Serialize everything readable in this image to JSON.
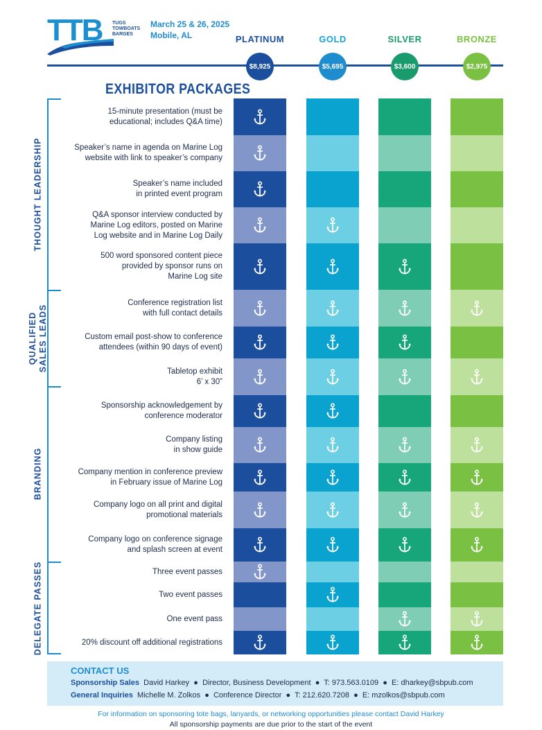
{
  "logo": {
    "text": "TTB",
    "sub": [
      "TUGS",
      "TOWBOATS",
      "BARGES"
    ]
  },
  "event": {
    "dates": "March 25 & 26, 2025",
    "location": "Mobile, AL"
  },
  "section_title": "EXHIBITOR PACKAGES",
  "tiers": [
    {
      "name": "PLATINUM",
      "price": "$8,925",
      "color": "#1b4e9c",
      "dark": "#1b4e9c",
      "light": "#8396c9",
      "text": "#1b4e9c"
    },
    {
      "name": "GOLD",
      "price": "$5,695",
      "color": "#1e8ccf",
      "dark": "#0aa3cf",
      "light": "#6ccfe3",
      "text": "#1aa3d6"
    },
    {
      "name": "SILVER",
      "price": "$3,600",
      "color": "#1a9b6e",
      "dark": "#17a679",
      "light": "#7fcdb5",
      "text": "#1a9b6e"
    },
    {
      "name": "BRONZE",
      "price": "$2,975",
      "color": "#7ac143",
      "dark": "#7ac143",
      "light": "#bde09c",
      "text": "#7ac143"
    }
  ],
  "groups": [
    {
      "label": [
        "THOUGHT LEADERSHIP"
      ]
    },
    {
      "label": [
        "QUALIFIED",
        "SALES LEADS"
      ]
    },
    {
      "label": [
        "BRANDING"
      ]
    },
    {
      "label": [
        "DELEGATE PASSES"
      ]
    }
  ],
  "features": [
    {
      "text": "15-minute presentation (must be educational; includes Q&A time)",
      "lines": [
        "15-minute presentation (must be",
        "educational; includes Q&A time)"
      ],
      "included": [
        true,
        false,
        false,
        false
      ]
    },
    {
      "text": "Speaker's name in agenda on Marine Log website with link to speaker's company",
      "lines": [
        "Speaker’s name in agenda on Marine Log",
        "website with link to speaker’s company"
      ],
      "included": [
        true,
        false,
        false,
        false
      ]
    },
    {
      "text": "Speaker's name included in printed event program",
      "lines": [
        "Speaker’s name included",
        "in printed event program"
      ],
      "included": [
        true,
        false,
        false,
        false
      ]
    },
    {
      "text": "Q&A sponsor interview",
      "lines": [
        "Q&A sponsor interview conducted by",
        "Marine Log editors, posted on Marine",
        "Log website and in Marine Log Daily"
      ],
      "included": [
        true,
        true,
        false,
        false
      ]
    },
    {
      "text": "500 word sponsored content piece",
      "lines": [
        "500 word sponsored content piece",
        "provided by sponsor runs on",
        "Marine Log site"
      ],
      "included": [
        true,
        true,
        true,
        false
      ]
    },
    {
      "text": "Conference registration list",
      "lines": [
        "Conference registration list",
        "with full contact details"
      ],
      "included": [
        true,
        true,
        true,
        true
      ]
    },
    {
      "text": "Custom email post-show",
      "lines": [
        "Custom email post-show to conference",
        "attendees (within 90 days of event)"
      ],
      "included": [
        true,
        true,
        true,
        false
      ]
    },
    {
      "text": "Tabletop exhibit",
      "lines": [
        "Tabletop exhibit",
        "6’ x 30”"
      ],
      "included": [
        true,
        true,
        true,
        true
      ]
    },
    {
      "text": "Sponsorship acknowledgement",
      "lines": [
        "Sponsorship acknowledgement by",
        "conference moderator"
      ],
      "included": [
        true,
        true,
        false,
        false
      ]
    },
    {
      "text": "Company listing",
      "lines": [
        "Company listing",
        "in show guide"
      ],
      "included": [
        true,
        true,
        true,
        true
      ]
    },
    {
      "text": "Company mention",
      "lines": [
        "Company mention in conference preview",
        "in February issue of Marine Log"
      ],
      "included": [
        true,
        true,
        true,
        true
      ]
    },
    {
      "text": "Company logo print",
      "lines": [
        "Company logo on all print and digital",
        "promotional materials"
      ],
      "included": [
        true,
        true,
        true,
        true
      ]
    },
    {
      "text": "Company logo signage",
      "lines": [
        "Company logo on conference signage",
        "and splash screen at event"
      ],
      "included": [
        true,
        true,
        true,
        true
      ]
    },
    {
      "text": "Three event passes",
      "lines": [
        "Three event passes"
      ],
      "included": [
        true,
        false,
        false,
        false
      ]
    },
    {
      "text": "Two event passes",
      "lines": [
        "Two event passes"
      ],
      "included": [
        false,
        true,
        false,
        false
      ]
    },
    {
      "text": "One event pass",
      "lines": [
        "One event pass"
      ],
      "included": [
        false,
        false,
        true,
        true
      ]
    },
    {
      "text": "20% discount",
      "lines": [
        "20% discount off additional registrations"
      ],
      "included": [
        true,
        true,
        true,
        true
      ]
    }
  ],
  "contact": {
    "title": "CONTACT US",
    "rows": [
      {
        "label": "Sponsorship Sales",
        "name": "David Harkey",
        "role": "Director, Business Development",
        "phone": "T: 973.563.0109",
        "email": "E: dharkey@sbpub.com"
      },
      {
        "label": "General Inquiries",
        "name": "Michelle M. Zolkos",
        "role": "Conference Director",
        "phone": "T: 212.620.7208",
        "email": "E: mzolkos@sbpub.com"
      }
    ]
  },
  "footer": {
    "line1": "For information on sponsoring tote bags, lanyards, or networking opportunities please contact David Harkey",
    "line2": "All sponsorship payments are due prior to the start of the event"
  }
}
